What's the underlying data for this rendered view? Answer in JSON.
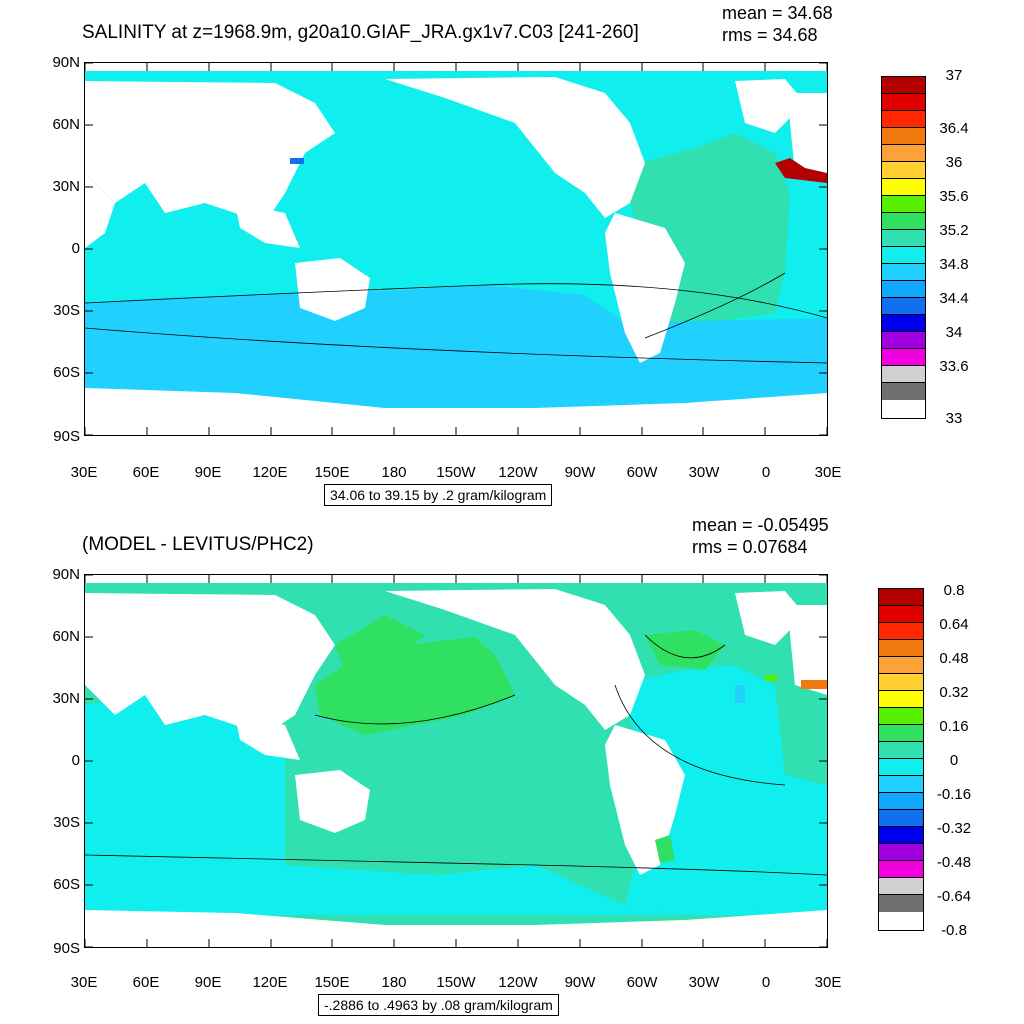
{
  "top": {
    "title": "SALINITY at z=1968.9m, g20a10.GIAF_JRA.gx1v7.C03 [241-260]",
    "mean": "mean = 34.68",
    "rms": "rms = 34.68",
    "range": "34.06 to 39.15 by .2 gram/kilogram",
    "lat_labels": [
      "90N",
      "60N",
      "30N",
      "0",
      "30S",
      "60S",
      "90S"
    ],
    "lon_labels": [
      "30E",
      "60E",
      "90E",
      "120E",
      "150E",
      "180",
      "150W",
      "120W",
      "90W",
      "60W",
      "30W",
      "0",
      "30E"
    ],
    "colorbar_colors": [
      "#b40000",
      "#e00000",
      "#ff2800",
      "#f07a10",
      "#fca238",
      "#ffd030",
      "#ffff00",
      "#58f000",
      "#30e060",
      "#30e0b0",
      "#10eeee",
      "#20d0ff",
      "#10a8ff",
      "#1070f0",
      "#0000f0",
      "#a000e0",
      "#f000e0",
      "#d0d0d0",
      "#707070"
    ],
    "colorbar_labels": [
      "37",
      "36.4",
      "36",
      "35.6",
      "35.2",
      "34.8",
      "34.4",
      "34",
      "33.6",
      "33"
    ]
  },
  "bottom": {
    "title": "(MODEL - LEVITUS/PHC2)",
    "mean": "mean = -0.05495",
    "rms": "rms = 0.07684",
    "range": "-.2886 to .4963 by .08 gram/kilogram",
    "lat_labels": [
      "90N",
      "60N",
      "30N",
      "0",
      "30S",
      "60S",
      "90S"
    ],
    "lon_labels": [
      "30E",
      "60E",
      "90E",
      "120E",
      "150E",
      "180",
      "150W",
      "120W",
      "90W",
      "60W",
      "30W",
      "0",
      "30E"
    ],
    "colorbar_colors": [
      "#b40000",
      "#e00000",
      "#ff2800",
      "#f07a10",
      "#fca238",
      "#ffd030",
      "#ffff00",
      "#58f000",
      "#30e060",
      "#30e0b0",
      "#10eeee",
      "#20d0ff",
      "#10a8ff",
      "#1070f0",
      "#0000f0",
      "#a000e0",
      "#f000e0",
      "#d0d0d0",
      "#707070"
    ],
    "colorbar_labels": [
      "0.8",
      "0.64",
      "0.48",
      "0.32",
      "0.16",
      "0",
      "-0.16",
      "-0.32",
      "-0.48",
      "-0.64",
      "-0.8"
    ]
  },
  "colors": {
    "ocean_top_main": "#10eeee",
    "ocean_top_south": "#20d0ff",
    "ocean_top_atlantic": "#30e0b0",
    "ocean_bottom_main": "#30e0b0",
    "ocean_bottom_north_pacific": "#30e060",
    "ocean_bottom_indian": "#10eeee",
    "land": "#ffffff"
  }
}
